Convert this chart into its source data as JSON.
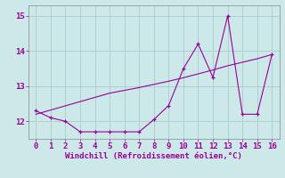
{
  "x": [
    0,
    1,
    2,
    3,
    4,
    5,
    6,
    7,
    8,
    9,
    10,
    11,
    12,
    13,
    14,
    15,
    16
  ],
  "y_curve": [
    12.3,
    12.1,
    12.0,
    11.7,
    11.7,
    11.7,
    11.7,
    11.7,
    12.05,
    12.45,
    13.5,
    14.2,
    13.25,
    15.0,
    12.2,
    12.2,
    13.9
  ],
  "y_trend": [
    12.2,
    12.32,
    12.44,
    12.56,
    12.68,
    12.8,
    12.88,
    12.96,
    13.05,
    13.14,
    13.24,
    13.35,
    13.46,
    13.58,
    13.68,
    13.78,
    13.9
  ],
  "xlabel": "Windchill (Refroidissement éolien,°C)",
  "xlim": [
    -0.5,
    16.5
  ],
  "ylim": [
    11.5,
    15.3
  ],
  "yticks": [
    12,
    13,
    14,
    15
  ],
  "xticks": [
    0,
    1,
    2,
    3,
    4,
    5,
    6,
    7,
    8,
    9,
    10,
    11,
    12,
    13,
    14,
    15,
    16
  ],
  "line_color": "#990099",
  "bg_color": "#cce8e8",
  "grid_color": "#aacccc"
}
